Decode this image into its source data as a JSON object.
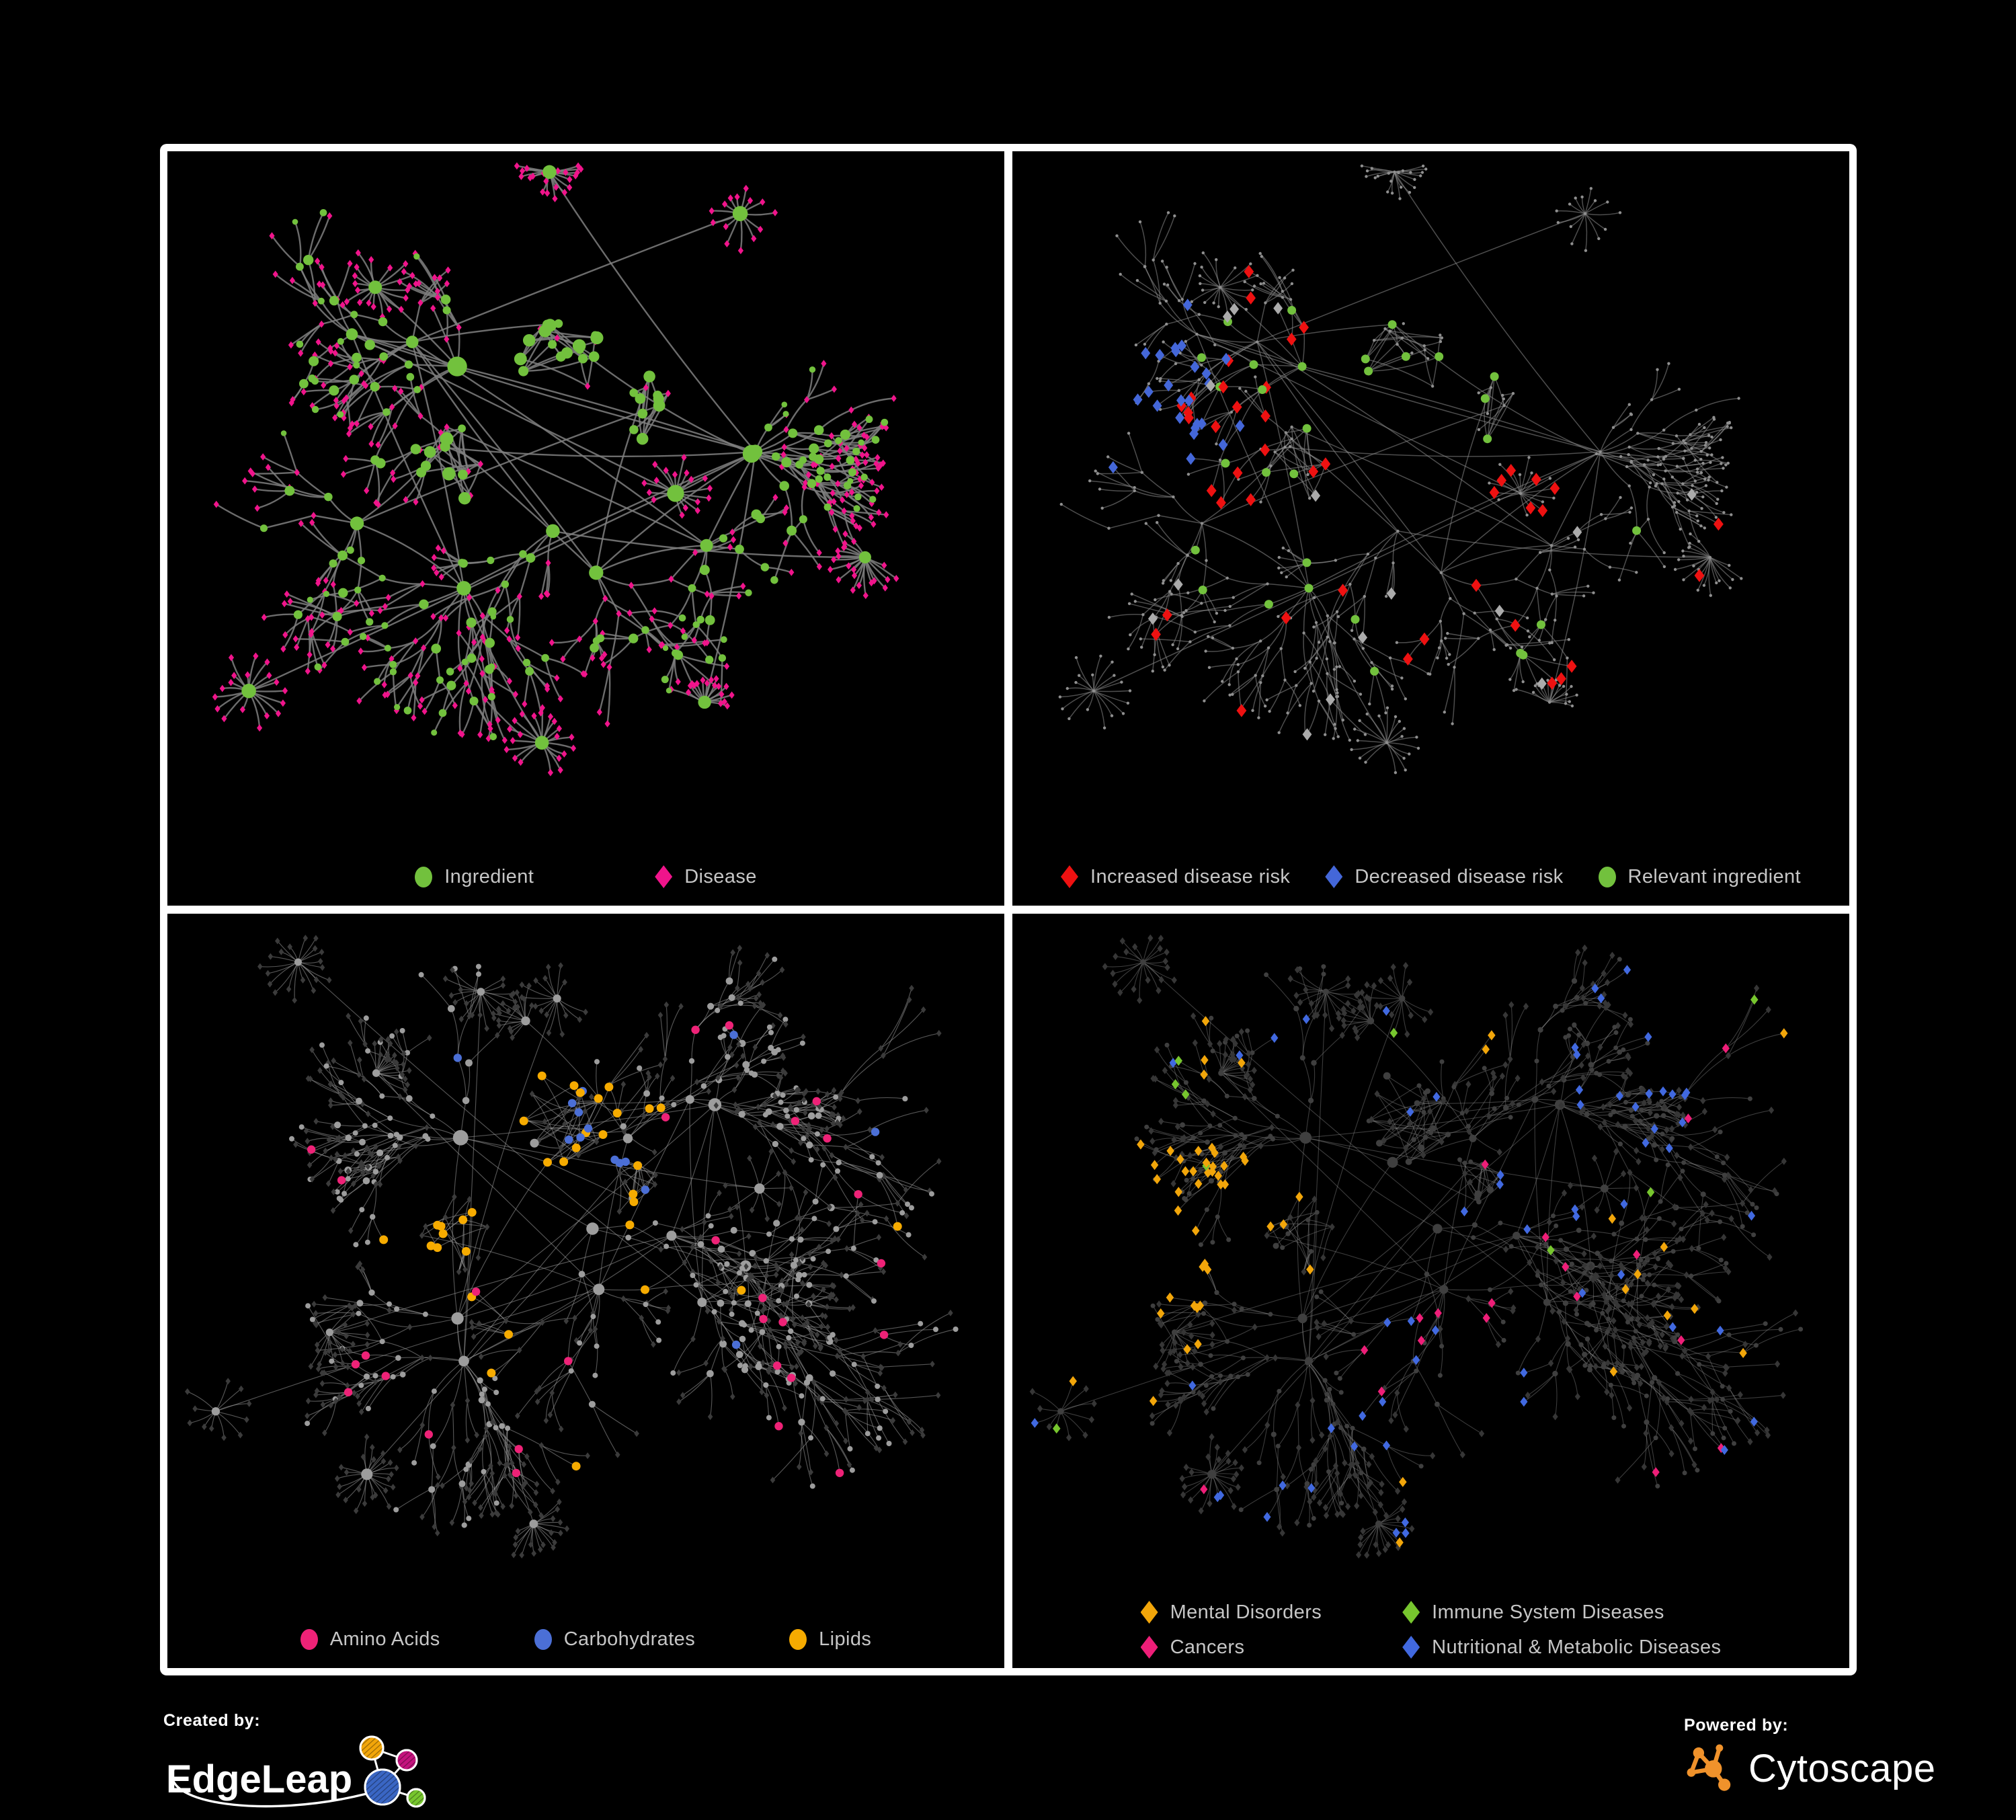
{
  "figure": {
    "background": "#000000",
    "frame_color": "#ffffff",
    "panel_background": "#000000"
  },
  "panels": [
    {
      "id": "ingredient-disease",
      "legend": [
        {
          "label": "Ingredient",
          "shape": "circle",
          "color": "#72c13d"
        },
        {
          "label": "Disease",
          "shape": "diamond",
          "color": "#f0148b"
        }
      ]
    },
    {
      "id": "disease-risk",
      "legend": [
        {
          "label": "Increased disease risk",
          "shape": "diamond",
          "color": "#ee1111"
        },
        {
          "label": "Decreased disease risk",
          "shape": "diamond",
          "color": "#4467d9"
        },
        {
          "label": "Relevant ingredient",
          "shape": "circle",
          "color": "#72c13d"
        }
      ]
    },
    {
      "id": "macronutrient-classes",
      "legend": [
        {
          "label": "Amino Acids",
          "shape": "circle",
          "color": "#ee2277"
        },
        {
          "label": "Carbohydrates",
          "shape": "circle",
          "color": "#4b6fd6"
        },
        {
          "label": "Lipids",
          "shape": "circle",
          "color": "#f6ab00"
        }
      ]
    },
    {
      "id": "disease-categories",
      "legend": [
        {
          "label": "Mental Disorders",
          "shape": "diamond",
          "color": "#f2a60a"
        },
        {
          "label": "Immune System Diseases",
          "shape": "diamond",
          "color": "#77c62e"
        },
        {
          "label": "Cancers",
          "shape": "diamond",
          "color": "#ee1e78"
        },
        {
          "label": "Nutritional & Metabolic Diseases",
          "shape": "diamond",
          "color": "#4169e0"
        }
      ]
    }
  ],
  "footer": {
    "created_by": "Created by:",
    "brand_left": "EdgeLeap",
    "powered_by": "Powered by:",
    "brand_right": "Cytoscape",
    "cytoscape_orange": "#f0922b"
  },
  "chart_data": [
    {
      "type": "network",
      "id": "ingredient-disease",
      "background": "#000000",
      "edge_color": "#7f7f7f",
      "layout": "organic force-directed",
      "node_classes": [
        {
          "label": "Ingredient",
          "shape": "circle",
          "color": "#72c13d"
        },
        {
          "label": "Disease",
          "shape": "diamond",
          "color": "#f0148b"
        }
      ]
    },
    {
      "type": "network",
      "id": "disease-risk",
      "background": "#000000",
      "edge_color": "#8d8d8d",
      "layout": "organic force-directed",
      "node_classes": [
        {
          "label": "Increased disease risk",
          "shape": "diamond",
          "color": "#ee1111"
        },
        {
          "label": "Decreased disease risk",
          "shape": "diamond",
          "color": "#4467d9"
        },
        {
          "label": "Relevant ingredient",
          "shape": "circle",
          "color": "#72c13d"
        },
        {
          "label": "unhighlighted node",
          "shape": "dot",
          "color": "#8f8f8f"
        },
        {
          "label": "unclassified association",
          "shape": "diamond",
          "color": "#ababab"
        }
      ]
    },
    {
      "type": "network",
      "id": "macronutrient-classes",
      "background": "#000000",
      "edge_color": "#9a9a9a",
      "layout": "organic force-directed",
      "node_classes": [
        {
          "label": "Amino Acids",
          "shape": "circle",
          "color": "#ee2277"
        },
        {
          "label": "Carbohydrates",
          "shape": "circle",
          "color": "#4b6fd6"
        },
        {
          "label": "Lipids",
          "shape": "circle",
          "color": "#f6ab00"
        },
        {
          "label": "other ingredient",
          "shape": "circle",
          "color": "#9d9d9d"
        },
        {
          "label": "disease",
          "shape": "diamond",
          "color": "#3b3b3b"
        }
      ]
    },
    {
      "type": "network",
      "id": "disease-categories",
      "background": "#000000",
      "edge_color": "#8f8f8f",
      "layout": "organic force-directed",
      "node_classes": [
        {
          "label": "Mental Disorders",
          "shape": "diamond",
          "color": "#f2a60a"
        },
        {
          "label": "Immune System Diseases",
          "shape": "diamond",
          "color": "#77c62e"
        },
        {
          "label": "Cancers",
          "shape": "diamond",
          "color": "#ee1e78"
        },
        {
          "label": "Nutritional & Metabolic Diseases",
          "shape": "diamond",
          "color": "#4169e0"
        },
        {
          "label": "other disease",
          "shape": "diamond",
          "color": "#363636"
        },
        {
          "label": "ingredient",
          "shape": "circle",
          "color": "#3f3f3f"
        }
      ]
    }
  ],
  "render": {
    "row_seeds": [
      20011,
      77003
    ],
    "edge_styles": [
      {
        "color": "#7f7f7f",
        "width": 2.4,
        "opacity": 0.85
      },
      {
        "color": "#8d8d8d",
        "width": 1.5,
        "opacity": 0.55
      },
      {
        "color": "#9a9a9a",
        "width": 1.15,
        "opacity": 0.55
      },
      {
        "color": "#8f8f8f",
        "width": 1.1,
        "opacity": 0.42
      }
    ],
    "palettes": {
      "p0": {
        "circle": "#72c13d",
        "diamond": "#f0148b"
      },
      "p1": {
        "base": "#8f8f8f",
        "red": "#ee1111",
        "blue": "#4467d9",
        "silver": "#ababab",
        "green": "#72c13d"
      },
      "p2": {
        "circle": "#9d9d9d",
        "diamond": "#3b3b3b",
        "amino": "#ee2277",
        "carb": "#4b6fd6",
        "lipid": "#f6ab00"
      },
      "p3": {
        "circle": "#3f3f3f",
        "diamond": "#363636",
        "mental": "#f2a60a",
        "immune": "#77c62e",
        "cancer": "#ee1e78",
        "nutri": "#4169e0"
      }
    }
  }
}
